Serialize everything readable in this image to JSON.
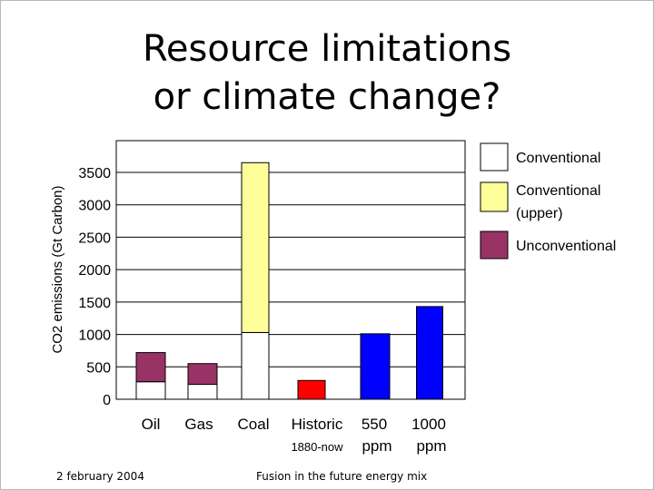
{
  "slide": {
    "title_line1": "Resource limitations",
    "title_line2": "or climate change?",
    "footer_date": "2 february 2004",
    "footer_center": "Fusion in the future energy mix"
  },
  "chart_data": {
    "type": "bar",
    "stacked": true,
    "ylabel": "CO2 emissions (Gt Carbon)",
    "ylim": [
      0,
      3500
    ],
    "yticks": [
      0,
      500,
      1000,
      1500,
      2000,
      2500,
      3000,
      3500
    ],
    "grid": true,
    "categories": [
      {
        "line1": "Oil",
        "line2": ""
      },
      {
        "line1": "Gas",
        "line2": ""
      },
      {
        "line1": "Coal",
        "line2": ""
      },
      {
        "line1": "Historic",
        "line2": "1880-now"
      },
      {
        "line1": "550",
        "line2": "ppm"
      },
      {
        "line1": "1000",
        "line2": "ppm"
      }
    ],
    "series": [
      {
        "name": "Conventional",
        "color": "#ffffff",
        "values": [
          270,
          230,
          1030,
          null,
          null,
          null
        ]
      },
      {
        "name": "Conventional (upper)",
        "color": "#ffff99",
        "values": [
          null,
          null,
          2620,
          null,
          null,
          null
        ]
      },
      {
        "name": "Unconventional",
        "color": "#993366",
        "values": [
          450,
          320,
          null,
          null,
          null,
          null
        ]
      },
      {
        "name": "",
        "color": "#ff0000",
        "values": [
          null,
          null,
          null,
          290,
          null,
          null
        ]
      },
      {
        "name": "",
        "color": "#0000ff",
        "values": [
          null,
          null,
          null,
          null,
          1010,
          1430
        ]
      }
    ],
    "legend": {
      "position": "right",
      "entries": [
        {
          "line1": "Conventional",
          "line2": "",
          "color": "#ffffff"
        },
        {
          "line1": "Conventional",
          "line2": "(upper)",
          "color": "#ffff99"
        },
        {
          "line1": "Unconventional",
          "line2": "",
          "color": "#993366"
        }
      ]
    }
  }
}
